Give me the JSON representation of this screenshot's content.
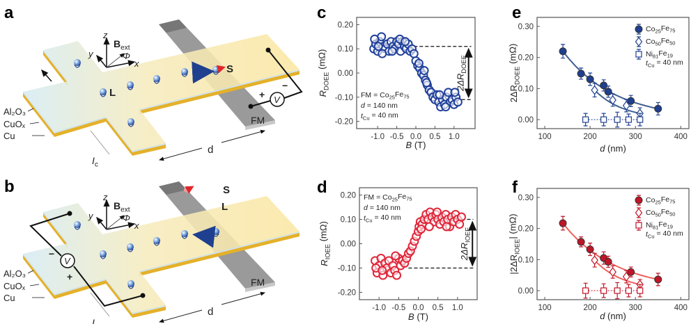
{
  "panel_labels": {
    "a": "a",
    "b": "b",
    "c": "c",
    "d": "d",
    "e": "e",
    "f": "f"
  },
  "schematic": {
    "axes": {
      "z": "z",
      "y": "y",
      "x": "x",
      "B": "B",
      "B_sub": "ext",
      "phi": "Φ"
    },
    "layers": [
      "Al₂O₃",
      "CuOₓ",
      "Cu"
    ],
    "current": {
      "main": "I",
      "sub": "c"
    },
    "distance": "d",
    "fm": "FM",
    "voltmeter": "V",
    "plus": "+",
    "minus": "−",
    "L": "L",
    "S": "S",
    "colors": {
      "slab_top_left": "#d6ecf4",
      "slab_top_right": "#fbe7a3",
      "slab_side": "#e5b12a",
      "fm": "#9a9a9a",
      "spin_L": "#1f3f8f",
      "spin_S": "#e0262b"
    }
  },
  "chart_data": [
    {
      "id": "c",
      "type": "scatter",
      "color": "#1f3f9a",
      "ylabel": {
        "main": "R",
        "sub": "DOEE",
        "rest": " (mΩ)"
      },
      "xlabel": {
        "main": "B",
        "rest": " (T)"
      },
      "xlim": [
        -1.55,
        1.55
      ],
      "ylim": [
        -0.23,
        0.23
      ],
      "xticks": [
        -1.0,
        -0.5,
        0.0,
        0.5,
        1.0
      ],
      "xtick_labels": [
        "-1.0",
        "-0.5",
        "0.0",
        "0.5",
        "1.0"
      ],
      "yticks": [
        -0.2,
        -0.1,
        0.0,
        0.1,
        0.2
      ],
      "ytick_labels": [
        "-0.20",
        "-0.10",
        "0.00",
        "0.10",
        "0.20"
      ],
      "annotations": [
        {
          "main": "FM = Co",
          "s1": "25",
          "m2": "Fe",
          "s2": "75"
        },
        {
          "main": "d",
          "rest": " = 140 nm"
        },
        {
          "main": "t",
          "sub": "Cu",
          "rest": " = 40 nm"
        }
      ],
      "delta_label": {
        "main": "2ΔR",
        "sub": "DOEE"
      },
      "delta_levels": [
        0.11,
        -0.11
      ],
      "points": [
        [
          -1.1,
          0.1
        ],
        [
          -1.05,
          0.12
        ],
        [
          -1.0,
          0.09
        ],
        [
          -0.95,
          0.13
        ],
        [
          -0.9,
          0.15
        ],
        [
          -0.85,
          0.11
        ],
        [
          -0.8,
          0.1
        ],
        [
          -0.75,
          0.12
        ],
        [
          -0.7,
          0.09
        ],
        [
          -0.65,
          0.13
        ],
        [
          -0.6,
          0.11
        ],
        [
          -0.55,
          0.1
        ],
        [
          -0.5,
          0.13
        ],
        [
          -0.45,
          0.12
        ],
        [
          -0.4,
          0.09
        ],
        [
          -0.35,
          0.13
        ],
        [
          -0.3,
          0.11
        ],
        [
          -0.25,
          0.1
        ],
        [
          -0.2,
          0.12
        ],
        [
          -0.15,
          0.09
        ],
        [
          -0.1,
          0.1
        ],
        [
          -0.05,
          0.08
        ],
        [
          0.0,
          0.05
        ],
        [
          0.05,
          0.03
        ],
        [
          0.1,
          0.02
        ],
        [
          0.15,
          0.0
        ],
        [
          0.2,
          -0.01
        ],
        [
          0.25,
          -0.03
        ],
        [
          0.3,
          -0.05
        ],
        [
          0.35,
          -0.07
        ],
        [
          0.4,
          -0.08
        ],
        [
          0.45,
          -0.1
        ],
        [
          0.5,
          -0.11
        ],
        [
          0.55,
          -0.09
        ],
        [
          0.6,
          -0.12
        ],
        [
          0.65,
          -0.14
        ],
        [
          0.7,
          -0.11
        ],
        [
          0.75,
          -0.13
        ],
        [
          0.8,
          -0.1
        ],
        [
          0.85,
          -0.08
        ],
        [
          0.9,
          -0.12
        ],
        [
          0.95,
          -0.11
        ],
        [
          1.0,
          -0.13
        ],
        [
          1.05,
          -0.1
        ],
        [
          1.1,
          -0.12
        ],
        [
          -1.08,
          0.14
        ],
        [
          -0.98,
          0.11
        ],
        [
          -0.88,
          0.08
        ],
        [
          -0.62,
          0.09
        ],
        [
          -0.42,
          0.14
        ],
        [
          -0.28,
          0.13
        ],
        [
          0.08,
          0.04
        ],
        [
          0.22,
          0.01
        ],
        [
          0.28,
          -0.04
        ],
        [
          0.62,
          -0.09
        ],
        [
          0.78,
          -0.14
        ],
        [
          1.02,
          -0.08
        ]
      ]
    },
    {
      "id": "d",
      "type": "scatter",
      "color": "#e0263a",
      "ylabel": {
        "main": "R",
        "sub": "IOEE",
        "rest": " (mΩ)"
      },
      "xlabel": {
        "main": "B",
        "rest": " (T)"
      },
      "xlim": [
        -1.5,
        1.5
      ],
      "ylim": [
        -0.23,
        0.23
      ],
      "xticks": [
        -1.0,
        -0.5,
        0.0,
        0.5,
        1.0
      ],
      "xtick_labels": [
        "-1.0",
        "-0.5",
        "0.0",
        "0.5",
        "1.0"
      ],
      "yticks": [
        -0.2,
        -0.1,
        0.0,
        0.1,
        0.2
      ],
      "ytick_labels": [
        "-0.20",
        "-0.10",
        "0.00",
        "0.10",
        "0.20"
      ],
      "annotations": [
        {
          "main": "FM = Co",
          "s1": "25",
          "m2": "Fe",
          "s2": "75"
        },
        {
          "main": "d",
          "rest": " = 140 nm"
        },
        {
          "main": "t",
          "sub": "Cu",
          "rest": " = 40 nm"
        }
      ],
      "delta_label": {
        "main": "2ΔR",
        "sub": "IOEE"
      },
      "delta_levels": [
        0.1,
        -0.1
      ],
      "points": [
        [
          -1.1,
          -0.07
        ],
        [
          -1.05,
          -0.12
        ],
        [
          -1.0,
          -0.09
        ],
        [
          -0.95,
          -0.06
        ],
        [
          -0.9,
          -0.13
        ],
        [
          -0.85,
          -0.08
        ],
        [
          -0.8,
          -0.1
        ],
        [
          -0.75,
          -0.07
        ],
        [
          -0.7,
          -0.12
        ],
        [
          -0.65,
          -0.09
        ],
        [
          -0.6,
          -0.11
        ],
        [
          -0.55,
          -0.13
        ],
        [
          -0.5,
          -0.06
        ],
        [
          -0.45,
          -0.09
        ],
        [
          -0.4,
          -0.07
        ],
        [
          -0.35,
          -0.08
        ],
        [
          -0.3,
          -0.06
        ],
        [
          -0.25,
          -0.04
        ],
        [
          -0.2,
          -0.03
        ],
        [
          -0.15,
          -0.01
        ],
        [
          -0.1,
          0.01
        ],
        [
          -0.05,
          0.03
        ],
        [
          0.0,
          0.05
        ],
        [
          0.02,
          0.07
        ],
        [
          0.05,
          0.09
        ],
        [
          0.1,
          0.08
        ],
        [
          0.15,
          0.1
        ],
        [
          0.2,
          0.12
        ],
        [
          0.25,
          0.1
        ],
        [
          0.3,
          0.13
        ],
        [
          0.35,
          0.11
        ],
        [
          0.4,
          0.09
        ],
        [
          0.45,
          0.12
        ],
        [
          0.5,
          0.1
        ],
        [
          0.55,
          0.08
        ],
        [
          0.6,
          0.11
        ],
        [
          0.65,
          0.09
        ],
        [
          0.7,
          0.12
        ],
        [
          0.75,
          0.1
        ],
        [
          0.8,
          0.07
        ],
        [
          0.85,
          0.11
        ],
        [
          0.9,
          0.09
        ],
        [
          0.95,
          0.12
        ],
        [
          1.0,
          0.1
        ],
        [
          1.05,
          0.08
        ],
        [
          1.1,
          0.11
        ],
        [
          -1.08,
          -0.1
        ],
        [
          -0.92,
          -0.11
        ],
        [
          -0.58,
          -0.05
        ],
        [
          0.07,
          0.06
        ],
        [
          0.28,
          0.07
        ],
        [
          0.48,
          0.13
        ],
        [
          0.72,
          0.07
        ]
      ]
    },
    {
      "id": "e",
      "type": "scatter",
      "color": "#1f3f8f",
      "line_color": "#3f5f8f",
      "ylabel": {
        "main": "2ΔR",
        "sub": "DOEE",
        "rest": " (mΩ)"
      },
      "xlabel": {
        "main": "d",
        "rest": " (nm)"
      },
      "xlim": [
        83,
        418
      ],
      "ylim": [
        -0.029,
        0.329
      ],
      "xticks": [
        100,
        200,
        300,
        400
      ],
      "xtick_labels": [
        "100",
        "200",
        "300",
        "400"
      ],
      "yticks": [
        0,
        0.1,
        0.2,
        0.3
      ],
      "ytick_labels": [
        "0.00",
        "0.10",
        "0.20",
        "0.30"
      ],
      "legend_position": "top-right",
      "legend_note": {
        "main": "t",
        "sub": "Cu",
        "rest": " = 40 nm"
      },
      "series": [
        {
          "name": {
            "a": "Co",
            "s1": "25",
            "b": "Fe",
            "s2": "75"
          },
          "marker": "filled-circle",
          "fit": true,
          "points": [
            [
              140,
              0.22,
              0.022
            ],
            [
              180,
              0.148,
              0.018
            ],
            [
              200,
              0.13,
              0.02
            ],
            [
              230,
              0.11,
              0.018
            ],
            [
              240,
              0.09,
              0.018
            ],
            [
              290,
              0.06,
              0.018
            ],
            [
              350,
              0.035,
              0.02
            ]
          ]
        },
        {
          "name": {
            "a": "Co",
            "s1": "50",
            "b": "Fe",
            "s2": "50"
          },
          "marker": "open-diamond",
          "fit": true,
          "points": [
            [
              210,
              0.095,
              0.022
            ],
            [
              250,
              0.063,
              0.02
            ],
            [
              280,
              0.045,
              0.02
            ],
            [
              310,
              0.02,
              0.018
            ]
          ]
        },
        {
          "name": {
            "a": "Ni",
            "s1": "81",
            "b": "Fe",
            "s2": "19"
          },
          "marker": "open-square",
          "fit": false,
          "dotted": true,
          "points": [
            [
              190,
              0.0,
              0.02
            ],
            [
              230,
              0.0,
              0.02
            ],
            [
              260,
              0.0,
              0.024
            ],
            [
              285,
              0.0,
              0.018
            ],
            [
              310,
              0.0,
              0.02
            ]
          ]
        }
      ]
    },
    {
      "id": "f",
      "type": "scatter",
      "color": "#c01528",
      "line_color": "#f0605a",
      "ylabel": {
        "main": "|2ΔR",
        "sub": "IOEE",
        "rest": "| (mΩ)"
      },
      "xlabel": {
        "main": "d",
        "rest": " (nm)"
      },
      "xlim": [
        83,
        418
      ],
      "ylim": [
        -0.029,
        0.329
      ],
      "xticks": [
        100,
        200,
        300,
        400
      ],
      "xtick_labels": [
        "100",
        "200",
        "300",
        "400"
      ],
      "yticks": [
        0,
        0.1,
        0.2,
        0.3
      ],
      "ytick_labels": [
        "0.00",
        "0.10",
        "0.20",
        "0.30"
      ],
      "legend_position": "top-right",
      "legend_note": {
        "main": "t",
        "sub": "Cu",
        "rest": " = 40 nm"
      },
      "series": [
        {
          "name": {
            "a": "Co",
            "s1": "25",
            "b": "Fe",
            "s2": "75"
          },
          "marker": "filled-circle",
          "fit": true,
          "points": [
            [
              140,
              0.217,
              0.022
            ],
            [
              180,
              0.157,
              0.016
            ],
            [
              200,
              0.133,
              0.02
            ],
            [
              230,
              0.105,
              0.02
            ],
            [
              240,
              0.093,
              0.018
            ],
            [
              290,
              0.06,
              0.016
            ],
            [
              350,
              0.036,
              0.02
            ]
          ]
        },
        {
          "name": {
            "a": "Co",
            "s1": "50",
            "b": "Fe",
            "s2": "50"
          },
          "marker": "open-diamond",
          "fit": true,
          "points": [
            [
              210,
              0.098,
              0.022
            ],
            [
              250,
              0.06,
              0.02
            ],
            [
              280,
              0.045,
              0.02
            ],
            [
              310,
              0.02,
              0.016
            ]
          ]
        },
        {
          "name": {
            "a": "Ni",
            "s1": "81",
            "b": "Fe",
            "s2": "19"
          },
          "marker": "open-square",
          "fit": false,
          "dotted": true,
          "points": [
            [
              190,
              0.0,
              0.024
            ],
            [
              230,
              0.0,
              0.022
            ],
            [
              260,
              0.0,
              0.026
            ],
            [
              285,
              0.0,
              0.02
            ],
            [
              310,
              0.0,
              0.02
            ]
          ]
        }
      ]
    }
  ]
}
